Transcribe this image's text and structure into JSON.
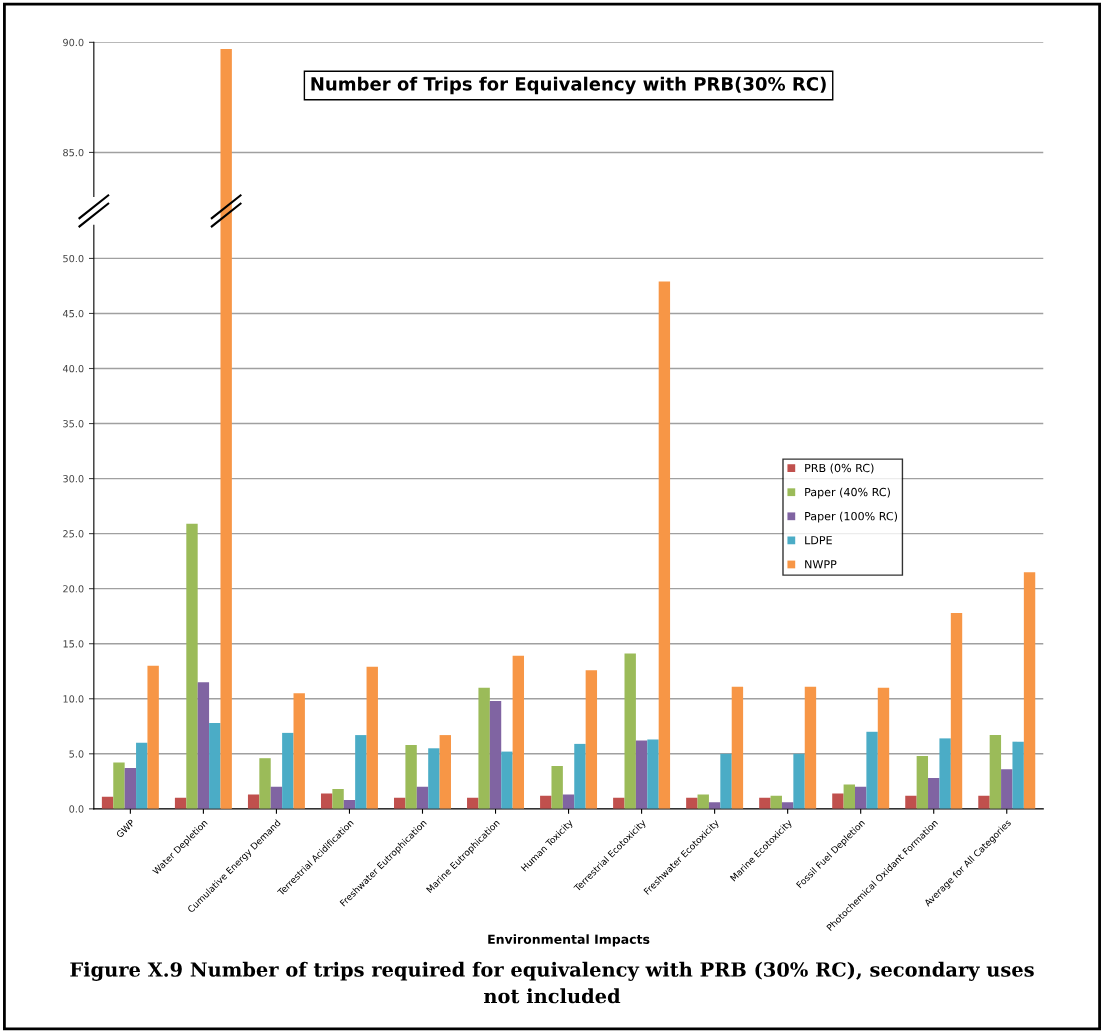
{
  "chart_data": [
    {
      "type": "bar",
      "title": "Number of Trips for Equivalency with PRB(30% RC)",
      "categories": [
        null,
        null,
        null,
        null,
        null,
        null,
        null,
        null,
        null,
        null,
        null,
        null,
        null
      ],
      "series": [
        {
          "color": "#f79646",
          "values": [
            null,
            89.7,
            null,
            null,
            null,
            null,
            null,
            null,
            null,
            null,
            null,
            null,
            null
          ]
        }
      ],
      "ylim": [
        83,
        90
      ],
      "yticks": [
        {
          "value": 85,
          "label": "85.0"
        },
        {
          "value": 90,
          "label": "90.0"
        }
      ],
      "grid": "y",
      "tick_labels": "y"
    },
    {
      "type": "bar",
      "xlabel": "Environmental Impacts",
      "categories": [
        "GWP",
        "Water Depletion",
        "Cumulative Energy Demand",
        "Terrestrial Acidification",
        "Freshwater Eutrophication",
        "Marine Eutrophication",
        "Human Toxicity",
        "Terrestrial Ecotoxicity",
        "Freshwater Ecotoxicity",
        "Marine Ecotoxicity",
        "Fossil Fuel Depletion",
        "Photochemical Oxidant Formation",
        "Average for All Categories"
      ],
      "series": [
        {
          "name": "PRB (0% RC)",
          "color": "#c0504d",
          "values": [
            1.1,
            1.0,
            1.3,
            1.4,
            1.0,
            1.0,
            1.2,
            1.0,
            1.0,
            1.0,
            1.4,
            1.2,
            1.2
          ]
        },
        {
          "name": "Paper (40% RC)",
          "color": "#9bbb59",
          "values": [
            4.2,
            25.9,
            4.6,
            1.8,
            5.8,
            11.0,
            3.9,
            14.1,
            1.3,
            1.2,
            2.2,
            4.8,
            6.7
          ]
        },
        {
          "name": "Paper (100% RC)",
          "color": "#8064a2",
          "values": [
            3.7,
            11.5,
            2.0,
            0.8,
            2.0,
            9.8,
            1.3,
            6.2,
            0.6,
            0.6,
            2.0,
            2.8,
            3.6
          ]
        },
        {
          "name": "LDPE",
          "color": "#4bacc6",
          "values": [
            6.0,
            7.8,
            6.9,
            6.7,
            5.5,
            5.2,
            5.9,
            6.3,
            5.0,
            5.0,
            7.0,
            6.4,
            6.1
          ]
        },
        {
          "name": "NWPP",
          "color": "#f79646",
          "values": [
            13.0,
            null,
            10.5,
            12.9,
            6.7,
            13.9,
            12.6,
            47.9,
            11.1,
            11.1,
            11.0,
            17.8,
            21.5
          ]
        }
      ],
      "ylim": [
        0,
        53
      ],
      "yticks": [
        {
          "value": 0,
          "label": "0.0"
        },
        {
          "value": 5,
          "label": "5.0"
        },
        {
          "value": 10,
          "label": "10.0"
        },
        {
          "value": 15,
          "label": "15.0"
        },
        {
          "value": 20,
          "label": "20.0"
        },
        {
          "value": 25,
          "label": "25.0"
        },
        {
          "value": 30,
          "label": "30.0"
        },
        {
          "value": 35,
          "label": "35.0"
        },
        {
          "value": 40,
          "label": "40.0"
        },
        {
          "value": 45,
          "label": "45.0"
        },
        {
          "value": 50,
          "label": "50.0"
        }
      ],
      "grid": "y",
      "legend": "right",
      "annotations": [
        "Figure X.9 Number of trips required for equivalency with PRB (30% RC), secondary uses not included"
      ]
    }
  ]
}
